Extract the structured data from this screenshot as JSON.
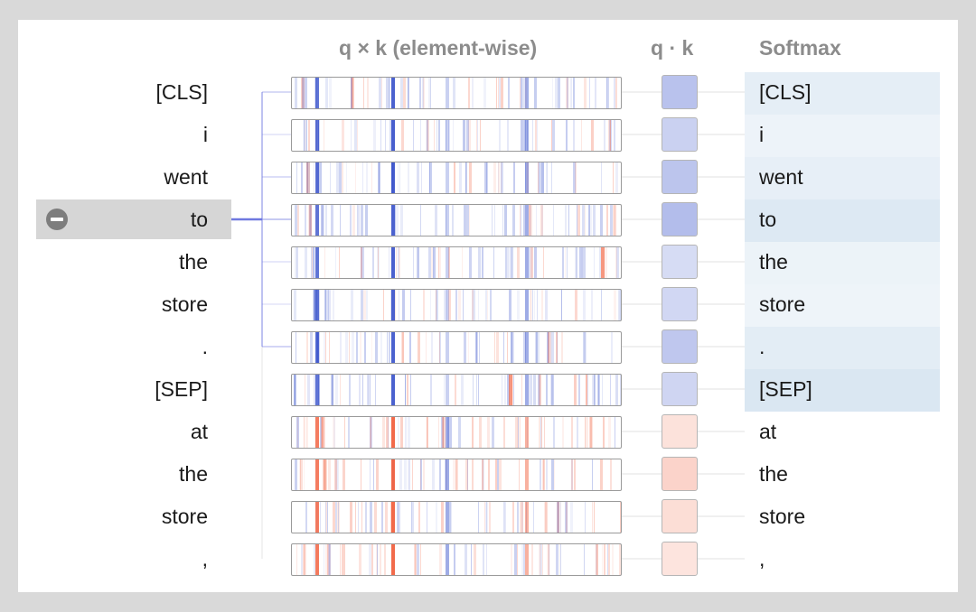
{
  "headers": {
    "elementwise": "q × k (element-wise)",
    "dot": "q · k",
    "softmax": "Softmax"
  },
  "selected_index": 3,
  "tokens_left": [
    "[CLS]",
    "i",
    "went",
    "to",
    "the",
    "store",
    ".",
    "[SEP]",
    "at",
    "the",
    "store",
    ","
  ],
  "tokens_right": [
    "[CLS]",
    "i",
    "went",
    "to",
    "the",
    "store",
    ".",
    "[SEP]",
    "at",
    "the",
    "store",
    ","
  ],
  "softmax_weights": [
    0.48,
    0.08,
    0.36,
    0.88,
    0.1,
    0.04,
    0.58,
    1.0,
    0,
    0,
    0,
    0
  ],
  "dot_products": [
    0.45,
    0.32,
    0.42,
    0.5,
    0.22,
    0.26,
    0.4,
    0.28,
    -0.18,
    -0.32,
    -0.22,
    -0.16
  ],
  "colors": {
    "positive": "#2b47c7",
    "negative": "#f0512c",
    "selected_background": "#d6d6d6",
    "softmax_background": "#dae7f2",
    "link_line": "#6f78e0"
  },
  "icons": {
    "deselect": "minus-circle-icon"
  }
}
